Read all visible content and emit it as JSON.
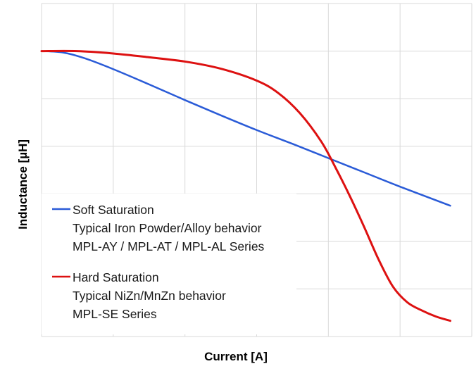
{
  "chart_data": {
    "type": "line",
    "xlabel": "Current [A]",
    "ylabel": "Inductance [µH]",
    "xlim": [
      0,
      6
    ],
    "ylim": [
      0,
      7
    ],
    "grid": true,
    "legend_placement": "lower-left",
    "series": [
      {
        "name": "Soft Saturation",
        "description": [
          "Typical Iron Powder/Alloy behavior",
          "MPL-AY / MPL-AT / MPL-AL Series"
        ],
        "color": "#2a5bd7",
        "x": [
          0,
          0.3,
          0.6,
          1.0,
          1.5,
          2.0,
          2.5,
          3.0,
          3.5,
          4.0,
          4.5,
          5.0,
          5.7
        ],
        "y": [
          6.0,
          5.97,
          5.85,
          5.62,
          5.3,
          4.97,
          4.65,
          4.34,
          4.05,
          3.75,
          3.45,
          3.15,
          2.75
        ]
      },
      {
        "name": "Hard Saturation",
        "description": [
          "Typical NiZn/MnZn behavior",
          "MPL-SE Series"
        ],
        "color": "#dd1111",
        "x": [
          0,
          0.5,
          1.0,
          1.5,
          2.0,
          2.5,
          3.0,
          3.3,
          3.6,
          3.9,
          4.1,
          4.3,
          4.5,
          4.7,
          4.9,
          5.1,
          5.3,
          5.5,
          5.7
        ],
        "y": [
          6.0,
          6.0,
          5.95,
          5.87,
          5.78,
          5.63,
          5.38,
          5.12,
          4.7,
          4.1,
          3.55,
          2.95,
          2.3,
          1.62,
          1.05,
          0.72,
          0.55,
          0.42,
          0.33
        ]
      }
    ]
  }
}
